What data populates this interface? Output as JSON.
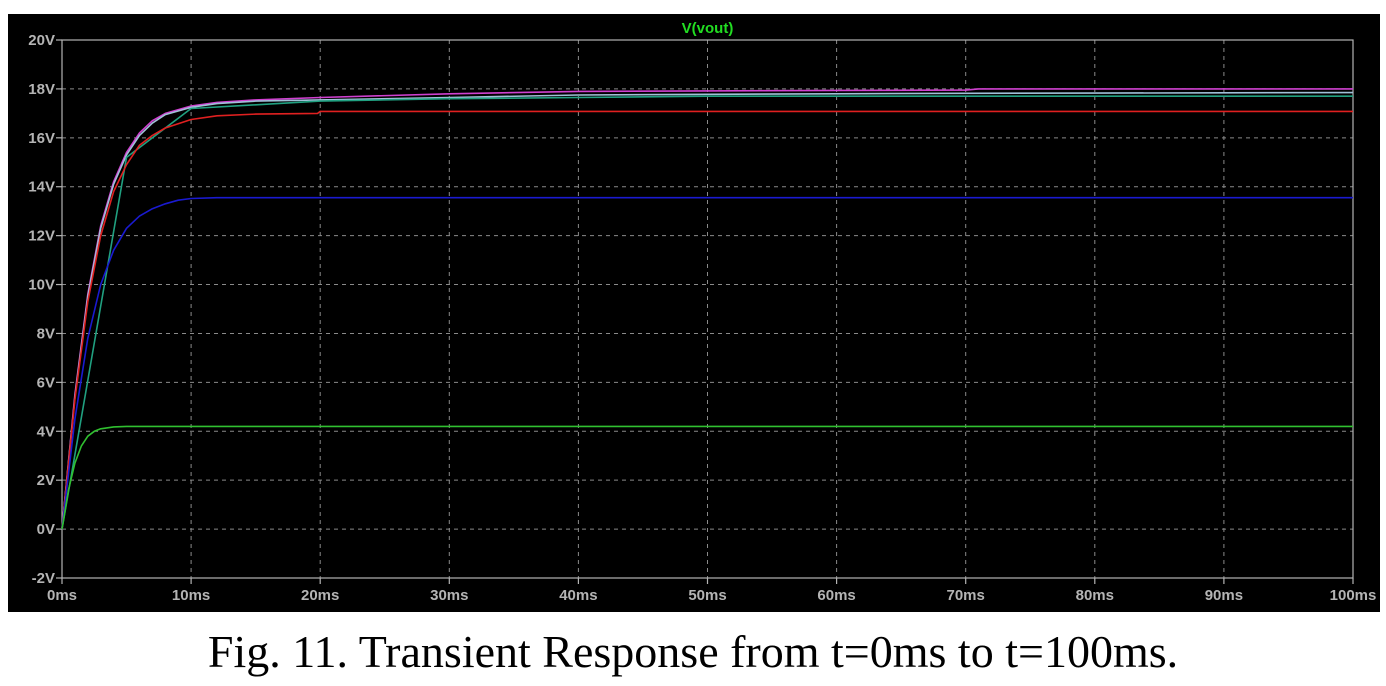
{
  "caption": "Fig. 11. Transient Response from t=0ms to t=100ms.",
  "chart_data": {
    "type": "line",
    "title": "V(vout)",
    "title_color": "#22dd22",
    "background": "#000000",
    "axis_color": "#b4b4b4",
    "grid": true,
    "grid_style": "dashed",
    "xlabel": "",
    "ylabel": "",
    "xlim": [
      0,
      100
    ],
    "ylim": [
      -2,
      20
    ],
    "x_ticks": [
      0,
      10,
      20,
      30,
      40,
      50,
      60,
      70,
      80,
      90,
      100
    ],
    "x_tick_labels": [
      "0ms",
      "10ms",
      "20ms",
      "30ms",
      "40ms",
      "50ms",
      "60ms",
      "70ms",
      "80ms",
      "90ms",
      "100ms"
    ],
    "y_ticks": [
      -2,
      0,
      2,
      4,
      6,
      8,
      10,
      12,
      14,
      16,
      18,
      20
    ],
    "y_tick_labels": [
      "-2V",
      "0V",
      "2V",
      "4V",
      "6V",
      "8V",
      "10V",
      "12V",
      "14V",
      "16V",
      "18V",
      "20V"
    ],
    "series": [
      {
        "color": "#d040d0",
        "x": [
          0,
          1,
          2,
          3,
          4,
          5,
          6,
          7,
          8,
          10,
          12,
          15,
          20,
          30,
          40,
          50,
          60,
          70,
          71,
          80,
          90,
          100
        ],
        "y": [
          0,
          5.5,
          9.6,
          12.4,
          14.2,
          15.4,
          16.2,
          16.7,
          17.0,
          17.3,
          17.45,
          17.55,
          17.65,
          17.8,
          17.9,
          17.92,
          17.94,
          17.95,
          18.0,
          18.0,
          18.0,
          18.0
        ]
      },
      {
        "color": "#a0c0d8",
        "x": [
          0,
          1,
          2,
          3,
          4,
          5,
          6,
          7,
          8,
          10,
          12,
          15,
          20,
          30,
          40,
          50,
          60,
          70,
          80,
          90,
          100
        ],
        "y": [
          0,
          5.4,
          9.5,
          12.3,
          14.1,
          15.3,
          16.1,
          16.6,
          16.95,
          17.25,
          17.4,
          17.5,
          17.55,
          17.65,
          17.75,
          17.78,
          17.8,
          17.82,
          17.83,
          17.84,
          17.85
        ]
      },
      {
        "color": "#20a080",
        "x": [
          0,
          5,
          10,
          20,
          30,
          40,
          50,
          60,
          70,
          80,
          90,
          100
        ],
        "y": [
          0,
          15.2,
          17.2,
          17.5,
          17.6,
          17.65,
          17.7,
          17.7,
          17.7,
          17.7,
          17.7,
          17.7
        ]
      },
      {
        "color": "#e02020",
        "x": [
          0,
          1,
          2,
          3,
          4,
          5,
          6,
          7,
          8,
          10,
          12,
          15,
          19.8,
          20,
          30,
          40,
          50,
          60,
          70,
          80,
          90,
          100
        ],
        "y": [
          0,
          5.3,
          9.3,
          12.0,
          13.8,
          14.9,
          15.7,
          16.1,
          16.4,
          16.75,
          16.9,
          16.97,
          17.0,
          17.08,
          17.08,
          17.08,
          17.08,
          17.08,
          17.08,
          17.08,
          17.08,
          17.08
        ]
      },
      {
        "color": "#1a1ad0",
        "x": [
          0,
          1,
          2,
          3,
          4,
          5,
          6,
          7,
          8,
          9,
          10,
          12,
          15,
          20,
          30,
          40,
          50,
          60,
          70,
          80,
          90,
          100
        ],
        "y": [
          0,
          4.5,
          7.8,
          10.0,
          11.4,
          12.3,
          12.8,
          13.1,
          13.3,
          13.45,
          13.52,
          13.55,
          13.55,
          13.55,
          13.55,
          13.55,
          13.55,
          13.55,
          13.55,
          13.55,
          13.55,
          13.55
        ]
      },
      {
        "color": "#30c030",
        "x": [
          0,
          0.5,
          1,
          1.5,
          2,
          2.5,
          3,
          4,
          5,
          7,
          10,
          20,
          30,
          40,
          50,
          60,
          70,
          80,
          90,
          100
        ],
        "y": [
          0,
          1.6,
          2.7,
          3.4,
          3.8,
          4.0,
          4.1,
          4.18,
          4.2,
          4.2,
          4.2,
          4.2,
          4.2,
          4.2,
          4.2,
          4.2,
          4.2,
          4.2,
          4.2,
          4.2
        ]
      }
    ]
  }
}
